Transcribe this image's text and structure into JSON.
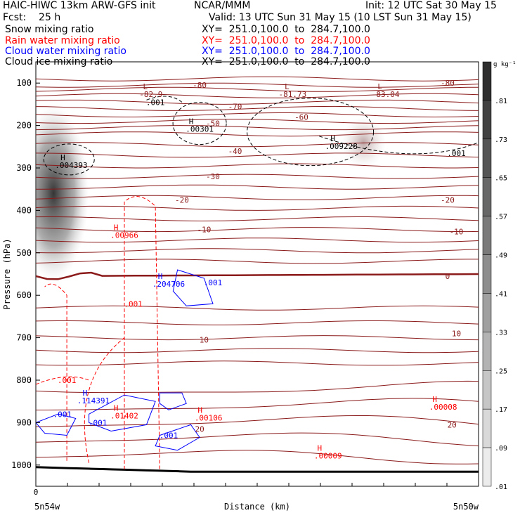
{
  "header": {
    "title_left": "HAIC-HIWC 13km ARW-GFS init",
    "org": "NCAR/MMM",
    "init": "Init: 12 UTC Sat 30 May 15",
    "fcst": "Fcst:    25 h",
    "valid": "Valid: 13 UTC Sun 31 May 15 (10 LST Sun 31 May 15)",
    "fields": [
      {
        "label": "Snow mixing ratio",
        "xy": "XY=  251.0,100.0  to  284.7,100.0",
        "color": "#000000"
      },
      {
        "label": "Rain water mixing ratio",
        "xy": "XY=  251.0,100.0  to  284.7,100.0",
        "color": "#ff0000"
      },
      {
        "label": "Cloud water mixing ratio",
        "xy": "XY=  251.0,100.0  to  284.7,100.0",
        "color": "#0000ff"
      },
      {
        "label": "Cloud ice mixing ratio",
        "xy": "XY=  251.0,100.0  to  284.7,100.0",
        "color": "#000000"
      }
    ]
  },
  "chart_data": {
    "type": "contour",
    "xlabel": "Distance (km)",
    "ylabel": "Pressure (hPa)",
    "x_start_label": "5n54w",
    "x_end_label": "5n50w",
    "x_origin_tick": "0",
    "xlim": [
      0,
      1
    ],
    "ylim": [
      1050,
      50
    ],
    "yticks": [
      100,
      200,
      300,
      400,
      500,
      600,
      700,
      800,
      900,
      1000
    ],
    "colorbar": {
      "unit": "g kg⁻¹",
      "ticks": [
        ".81",
        ".73",
        ".65",
        ".57",
        ".49",
        ".41",
        ".33",
        ".25",
        ".17",
        ".09",
        ".01"
      ]
    },
    "temperature_contours": {
      "color": "#8b1a1a",
      "labels": [
        {
          "text": "-80",
          "x": 0.37,
          "p": 105
        },
        {
          "text": "-80",
          "x": 0.93,
          "p": 100
        },
        {
          "text": "-70",
          "x": 0.45,
          "p": 155
        },
        {
          "text": "-60",
          "x": 0.6,
          "p": 180
        },
        {
          "text": "-50",
          "x": 0.4,
          "p": 195
        },
        {
          "text": "-40",
          "x": 0.45,
          "p": 260
        },
        {
          "text": "-30",
          "x": 0.4,
          "p": 320
        },
        {
          "text": "-20",
          "x": 0.33,
          "p": 375
        },
        {
          "text": "-20",
          "x": 0.93,
          "p": 375
        },
        {
          "text": "-10",
          "x": 0.38,
          "p": 445
        },
        {
          "text": "-10",
          "x": 0.95,
          "p": 450
        },
        {
          "text": "0",
          "x": 0.93,
          "p": 555
        },
        {
          "text": "10",
          "x": 0.38,
          "p": 705
        },
        {
          "text": "10",
          "x": 0.95,
          "p": 690
        },
        {
          "text": "20",
          "x": 0.37,
          "p": 915
        },
        {
          "text": "20",
          "x": 0.94,
          "p": 905
        }
      ],
      "lows": [
        {
          "value": "-82.9",
          "x": 0.26,
          "p": 90
        },
        {
          "value": "-81.73",
          "x": 0.58,
          "p": 90
        },
        {
          "value": "-83.04",
          "x": 0.79,
          "p": 90
        }
      ]
    },
    "ice_maxima": [
      {
        "value": ".004393",
        "x": 0.08,
        "p": 285
      },
      {
        "value": ".00301",
        "x": 0.37,
        "p": 200
      },
      {
        "value": ".009228",
        "x": 0.69,
        "p": 240
      }
    ],
    "ice_contour_labels": [
      {
        "text": ".001",
        "x": 0.27,
        "p": 145
      },
      {
        "text": ".001",
        "x": 0.95,
        "p": 265
      }
    ],
    "rain_maxima": [
      {
        "value": ".00966",
        "x": 0.2,
        "p": 450
      },
      {
        "value": ".01402",
        "x": 0.2,
        "p": 875
      },
      {
        "value": ".00106",
        "x": 0.39,
        "p": 880
      },
      {
        "value": ".00008",
        "x": 0.92,
        "p": 855
      },
      {
        "value": ".00009",
        "x": 0.66,
        "p": 970
      }
    ],
    "rain_contour_labels": [
      {
        "text": ".001",
        "x": 0.22,
        "p": 620
      },
      {
        "text": ".001",
        "x": 0.07,
        "p": 800
      }
    ],
    "cloud_maxima": [
      {
        "value": ".204706",
        "x": 0.3,
        "p": 565
      },
      {
        "value": ".114391",
        "x": 0.13,
        "p": 840
      }
    ],
    "cloud_contour_labels": [
      {
        "text": ".001",
        "x": 0.4,
        "p": 570
      },
      {
        "text": ".001",
        "x": 0.06,
        "p": 880
      },
      {
        "text": ".001",
        "x": 0.14,
        "p": 900
      },
      {
        "text": ".001",
        "x": 0.3,
        "p": 930
      }
    ]
  }
}
